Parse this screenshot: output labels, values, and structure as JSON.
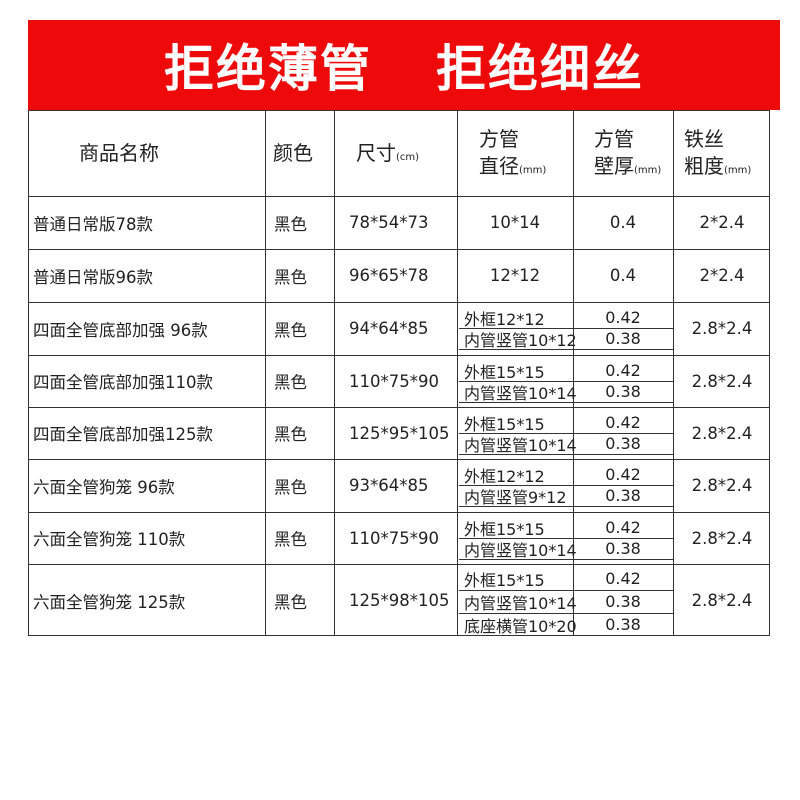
{
  "banner": {
    "left": "拒绝薄管",
    "right": "拒绝细丝",
    "color": "#ee0a0a"
  },
  "headers": {
    "name": "商品名称",
    "color": "颜色",
    "size": "尺寸",
    "size_unit": "(cm)",
    "diameter_1": "方管",
    "diameter_2": "直径",
    "diameter_unit": "(mm)",
    "thickness_1": "方管",
    "thickness_2": "壁厚",
    "thickness_unit": "(mm)",
    "wire_1": "铁丝",
    "wire_2": "粗度",
    "wire_unit": "(mm)"
  },
  "rows": [
    {
      "name": "普通日常版78款",
      "color": "黑色",
      "size": "78*54*73",
      "tubes": [
        {
          "diameter": "10*14",
          "thickness": "0.4"
        }
      ],
      "wire": "2*2.4"
    },
    {
      "name": "普通日常版96款",
      "color": "黑色",
      "size": "96*65*78",
      "tubes": [
        {
          "diameter": "12*12",
          "thickness": "0.4"
        }
      ],
      "wire": "2*2.4"
    },
    {
      "name": "四面全管底部加强 96款",
      "color": "黑色",
      "size": "94*64*85",
      "tubes": [
        {
          "diameter": "外框12*12",
          "thickness": "0.42"
        },
        {
          "diameter": "内管竖管10*12",
          "thickness": "0.38"
        }
      ],
      "wire": "2.8*2.4"
    },
    {
      "name": "四面全管底部加强110款",
      "color": "黑色",
      "size": "110*75*90",
      "tubes": [
        {
          "diameter": "外框15*15",
          "thickness": "0.42"
        },
        {
          "diameter": "内管竖管10*14",
          "thickness": "0.38"
        }
      ],
      "wire": "2.8*2.4"
    },
    {
      "name": "四面全管底部加强125款",
      "color": "黑色",
      "size": "125*95*105",
      "tubes": [
        {
          "diameter": "外框15*15",
          "thickness": "0.42"
        },
        {
          "diameter": "内管竖管10*14",
          "thickness": "0.38"
        }
      ],
      "wire": "2.8*2.4"
    },
    {
      "name": "六面全管狗笼 96款",
      "color": "黑色",
      "size": "93*64*85",
      "tubes": [
        {
          "diameter": "外框12*12",
          "thickness": "0.42"
        },
        {
          "diameter": "内管竖管9*12",
          "thickness": "0.38"
        }
      ],
      "wire": "2.8*2.4"
    },
    {
      "name": "六面全管狗笼 110款",
      "color": "黑色",
      "size": "110*75*90",
      "tubes": [
        {
          "diameter": "外框15*15",
          "thickness": "0.42"
        },
        {
          "diameter": "内管竖管10*14",
          "thickness": "0.38"
        }
      ],
      "wire": "2.8*2.4"
    },
    {
      "name": "六面全管狗笼 125款",
      "color": "黑色",
      "size": "125*98*105",
      "tubes": [
        {
          "diameter": "外框15*15",
          "thickness": "0.42"
        },
        {
          "diameter": "内管竖管10*14",
          "thickness": "0.38"
        },
        {
          "diameter": "底座横管10*20",
          "thickness": "0.38"
        }
      ],
      "wire": "2.8*2.4"
    }
  ]
}
